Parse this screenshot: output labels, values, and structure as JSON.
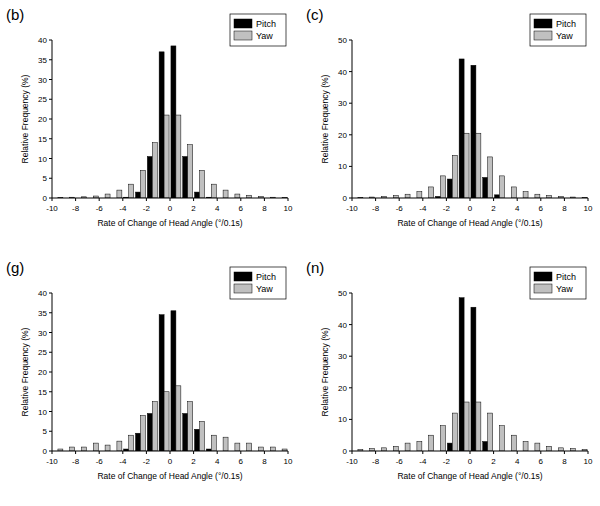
{
  "chart_data": [
    {
      "type": "bar",
      "title": "(b)",
      "x_label": "Rate of Change of Head Angle (°/0.1s)",
      "y_label": "Relative Frequency (%)",
      "x": [
        -9.5,
        -8.5,
        -7.5,
        -6.5,
        -5.5,
        -4.5,
        -3.5,
        -2.5,
        -1.5,
        -0.5,
        0.5,
        1.5,
        2.5,
        3.5,
        4.5,
        5.5,
        6.5,
        7.5,
        8.5,
        9.5
      ],
      "series": [
        {
          "name": "Pitch",
          "color": "#000000",
          "values": [
            0,
            0,
            0,
            0,
            0,
            0,
            0.2,
            1.5,
            10.5,
            37,
            38.5,
            10.5,
            1.5,
            0.2,
            0,
            0,
            0,
            0,
            0,
            0
          ]
        },
        {
          "name": "Yaw",
          "color": "#c0c0c0",
          "values": [
            0.1,
            0.2,
            0.3,
            0.5,
            1,
            2,
            3.5,
            7,
            14,
            21,
            21,
            13.5,
            7,
            3.5,
            2,
            1,
            0.7,
            0.4,
            0.2,
            0.1
          ]
        }
      ],
      "xlim": [
        -10,
        10
      ],
      "xticks": [
        -10,
        -8,
        -6,
        -4,
        -2,
        0,
        2,
        4,
        6,
        8,
        10
      ],
      "ylim": [
        0,
        40
      ],
      "yticks": [
        0,
        5,
        10,
        15,
        20,
        25,
        30,
        35,
        40
      ],
      "legend": "top-right"
    },
    {
      "type": "bar",
      "title": "(c)",
      "x_label": "Rate of Change of Head Angle (°/0.1s)",
      "y_label": "Relative Frequency (%)",
      "x": [
        -9.5,
        -8.5,
        -7.5,
        -6.5,
        -5.5,
        -4.5,
        -3.5,
        -2.5,
        -1.5,
        -0.5,
        0.5,
        1.5,
        2.5,
        3.5,
        4.5,
        5.5,
        6.5,
        7.5,
        8.5,
        9.5
      ],
      "series": [
        {
          "name": "Pitch",
          "color": "#000000",
          "values": [
            0,
            0,
            0,
            0,
            0,
            0,
            0,
            0.5,
            6,
            44,
            42,
            6.5,
            1,
            0,
            0,
            0,
            0,
            0,
            0,
            0
          ]
        },
        {
          "name": "Yaw",
          "color": "#c0c0c0",
          "values": [
            0.2,
            0.3,
            0.5,
            0.8,
            1.2,
            2,
            3.5,
            7,
            13.5,
            20.5,
            20.5,
            13,
            7,
            3.5,
            2,
            1.2,
            0.8,
            0.5,
            0.3,
            0.2
          ]
        }
      ],
      "xlim": [
        -10,
        10
      ],
      "xticks": [
        -10,
        -8,
        -6,
        -4,
        -2,
        0,
        2,
        4,
        6,
        8,
        10
      ],
      "ylim": [
        0,
        50
      ],
      "yticks": [
        0,
        10,
        20,
        30,
        40,
        50
      ],
      "legend": "top-right"
    },
    {
      "type": "bar",
      "title": "(g)",
      "x_label": "Rate of Change of Head Angle (°/0.1s)",
      "y_label": "Relative Frequency (%)",
      "x": [
        -9.5,
        -8.5,
        -7.5,
        -6.5,
        -5.5,
        -4.5,
        -3.5,
        -2.5,
        -1.5,
        -0.5,
        0.5,
        1.5,
        2.5,
        3.5,
        4.5,
        5.5,
        6.5,
        7.5,
        8.5,
        9.5
      ],
      "series": [
        {
          "name": "Pitch",
          "color": "#000000",
          "values": [
            0,
            0,
            0,
            0,
            0,
            0,
            0.5,
            4.5,
            9.5,
            34.5,
            35.5,
            9.5,
            5.5,
            0.5,
            0,
            0,
            0,
            0,
            0,
            0
          ]
        },
        {
          "name": "Yaw",
          "color": "#c0c0c0",
          "values": [
            0.5,
            1,
            1,
            2,
            1.5,
            2.5,
            4,
            9,
            12.5,
            15,
            16.5,
            12.5,
            7.5,
            4,
            3.5,
            2,
            2,
            1,
            1,
            0.5
          ]
        }
      ],
      "xlim": [
        -10,
        10
      ],
      "xticks": [
        -10,
        -8,
        -6,
        -4,
        -2,
        0,
        2,
        4,
        6,
        8,
        10
      ],
      "ylim": [
        0,
        40
      ],
      "yticks": [
        0,
        5,
        10,
        15,
        20,
        25,
        30,
        35,
        40
      ],
      "legend": "top-right"
    },
    {
      "type": "bar",
      "title": "(n)",
      "x_label": "Rate of Change of Head Angle (°/0.1s)",
      "y_label": "Relative Frequency (%)",
      "x": [
        -9.5,
        -8.5,
        -7.5,
        -6.5,
        -5.5,
        -4.5,
        -3.5,
        -2.5,
        -1.5,
        -0.5,
        0.5,
        1.5,
        2.5,
        3.5,
        4.5,
        5.5,
        6.5,
        7.5,
        8.5,
        9.5
      ],
      "series": [
        {
          "name": "Pitch",
          "color": "#000000",
          "values": [
            0,
            0,
            0,
            0,
            0,
            0,
            0,
            0,
            2.5,
            48.5,
            45.5,
            3,
            0,
            0,
            0,
            0,
            0,
            0,
            0,
            0
          ]
        },
        {
          "name": "Yaw",
          "color": "#c0c0c0",
          "values": [
            0.5,
            0.8,
            1,
            1.5,
            2.5,
            3,
            5,
            8,
            12,
            15.5,
            15.5,
            12,
            8,
            5,
            3,
            2.5,
            1.5,
            1,
            0.8,
            0.5
          ]
        }
      ],
      "xlim": [
        -10,
        10
      ],
      "xticks": [
        -10,
        -8,
        -6,
        -4,
        -2,
        0,
        2,
        4,
        6,
        8,
        10
      ],
      "ylim": [
        0,
        50
      ],
      "yticks": [
        0,
        10,
        20,
        30,
        40,
        50
      ],
      "legend": "top-right"
    }
  ]
}
